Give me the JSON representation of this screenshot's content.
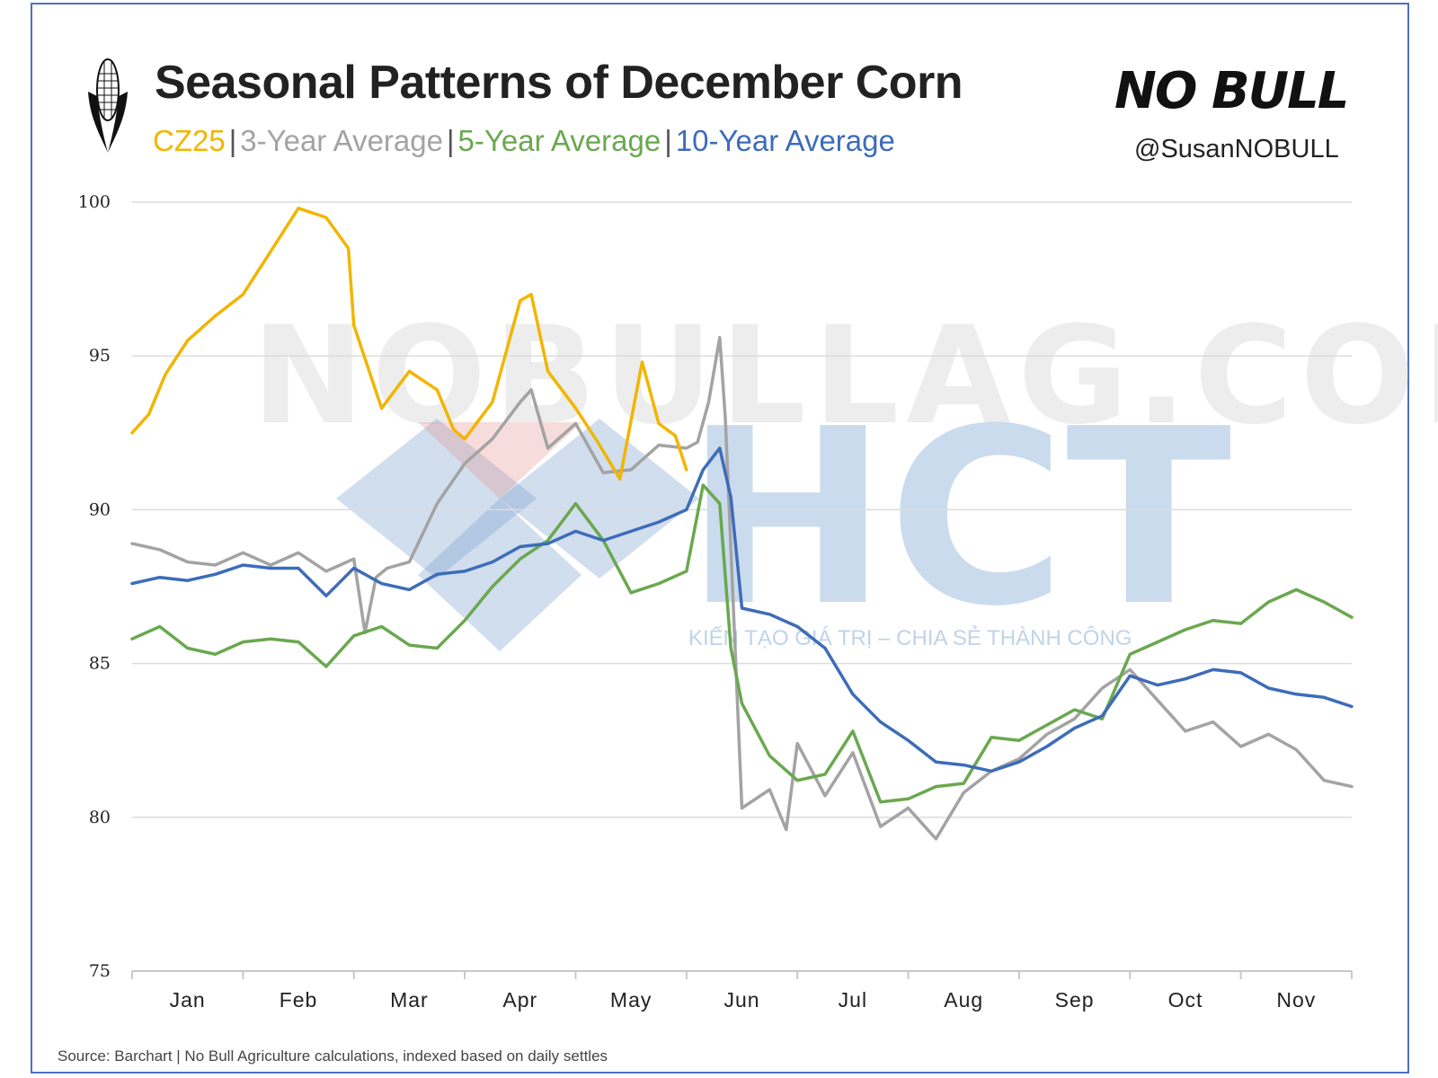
{
  "header": {
    "title": "Seasonal Patterns of December Corn",
    "subtitle_items": [
      {
        "label": "CZ25",
        "color": "#f2b500"
      },
      {
        "label": "3-Year Average",
        "color": "#a3a3a3"
      },
      {
        "label": "5-Year Average",
        "color": "#6aa84f"
      },
      {
        "label": "10-Year Average",
        "color": "#3d6cb9"
      }
    ],
    "separator": "|",
    "logo_text": "NO BULL",
    "handle": "@SusanNOBULL"
  },
  "watermark": {
    "text": "NOBULLAG.COM",
    "brand": "HCT",
    "tagline": "KIẾN TẠO GIÁ TRỊ – CHIA SẺ THÀNH CÔNG"
  },
  "footer": {
    "source": "Source: Barchart | No Bull Agriculture calculations, indexed based on daily settles"
  },
  "chart_data": {
    "type": "line",
    "title": "Seasonal Patterns of December Corn",
    "xlabel": "",
    "ylabel": "",
    "ylim": [
      75,
      100
    ],
    "yticks": [
      100,
      95,
      90,
      85,
      80,
      75
    ],
    "x_tick_labels": [
      "Jan",
      "Feb",
      "Mar",
      "Apr",
      "May",
      "Jun",
      "Jul",
      "Aug",
      "Sep",
      "Oct",
      "Nov"
    ],
    "x_domain_months": [
      0,
      11
    ],
    "grid": true,
    "series": [
      {
        "name": "3-Year Average",
        "color": "#a3a3a3",
        "x": [
          0,
          0.25,
          0.5,
          0.75,
          1,
          1.25,
          1.5,
          1.75,
          2,
          2.1,
          2.2,
          2.3,
          2.5,
          2.75,
          3,
          3.25,
          3.5,
          3.6,
          3.75,
          4,
          4.25,
          4.5,
          4.75,
          5,
          5.1,
          5.2,
          5.3,
          5.35,
          5.5,
          5.75,
          5.9,
          6,
          6.25,
          6.5,
          6.75,
          7,
          7.25,
          7.5,
          7.75,
          8,
          8.25,
          8.5,
          8.75,
          9,
          9.25,
          9.5,
          9.75,
          10,
          10.25,
          10.5,
          10.75,
          11
        ],
        "values": [
          88.9,
          88.7,
          88.3,
          88.2,
          88.6,
          88.2,
          88.6,
          88.0,
          88.4,
          86.0,
          87.8,
          88.1,
          88.3,
          90.2,
          91.5,
          92.3,
          93.5,
          93.9,
          92.0,
          92.8,
          91.2,
          91.3,
          92.1,
          92.0,
          92.2,
          93.5,
          95.6,
          93.0,
          80.3,
          80.9,
          79.6,
          82.4,
          80.7,
          82.1,
          79.7,
          80.3,
          79.3,
          80.8,
          81.5,
          81.9,
          82.7,
          83.2,
          84.2,
          84.8,
          83.8,
          82.8,
          83.1,
          82.3,
          82.7,
          82.2,
          81.2,
          81.0
        ]
      },
      {
        "name": "5-Year Average",
        "color": "#6aa84f",
        "x": [
          0,
          0.25,
          0.5,
          0.75,
          1,
          1.25,
          1.5,
          1.75,
          2,
          2.25,
          2.5,
          2.75,
          3,
          3.25,
          3.5,
          3.75,
          4,
          4.25,
          4.5,
          4.75,
          5,
          5.15,
          5.3,
          5.4,
          5.5,
          5.75,
          6,
          6.25,
          6.5,
          6.75,
          7,
          7.25,
          7.5,
          7.75,
          8,
          8.25,
          8.5,
          8.75,
          9,
          9.25,
          9.5,
          9.75,
          10,
          10.25,
          10.5,
          10.75,
          11
        ],
        "values": [
          85.8,
          86.2,
          85.5,
          85.3,
          85.7,
          85.8,
          85.7,
          84.9,
          85.9,
          86.2,
          85.6,
          85.5,
          86.4,
          87.5,
          88.4,
          89.0,
          90.2,
          89.0,
          87.3,
          87.6,
          88.0,
          90.8,
          90.2,
          85.5,
          83.7,
          82.0,
          81.2,
          81.4,
          82.8,
          80.5,
          80.6,
          81.0,
          81.1,
          82.6,
          82.5,
          83.0,
          83.5,
          83.2,
          85.3,
          85.7,
          86.1,
          86.4,
          86.3,
          87.0,
          87.4,
          87.0,
          86.5
        ]
      },
      {
        "name": "10-Year Average",
        "color": "#3d6cb9",
        "x": [
          0,
          0.25,
          0.5,
          0.75,
          1,
          1.25,
          1.5,
          1.75,
          2,
          2.25,
          2.5,
          2.75,
          3,
          3.25,
          3.5,
          3.75,
          4,
          4.25,
          4.5,
          4.75,
          5,
          5.15,
          5.3,
          5.4,
          5.5,
          5.75,
          6,
          6.25,
          6.5,
          6.75,
          7,
          7.25,
          7.5,
          7.75,
          8,
          8.25,
          8.5,
          8.75,
          9,
          9.25,
          9.5,
          9.75,
          10,
          10.25,
          10.5,
          10.75,
          11
        ],
        "values": [
          87.6,
          87.8,
          87.7,
          87.9,
          88.2,
          88.1,
          88.1,
          87.2,
          88.1,
          87.6,
          87.4,
          87.9,
          88.0,
          88.3,
          88.8,
          88.9,
          89.3,
          89.0,
          89.3,
          89.6,
          90.0,
          91.3,
          92.0,
          90.4,
          86.8,
          86.6,
          86.2,
          85.5,
          84.0,
          83.1,
          82.5,
          81.8,
          81.7,
          81.5,
          81.8,
          82.3,
          82.9,
          83.3,
          84.6,
          84.3,
          84.5,
          84.8,
          84.7,
          84.2,
          84.0,
          83.9,
          83.6
        ]
      },
      {
        "name": "CZ25",
        "color": "#f2b500",
        "x": [
          0,
          0.15,
          0.3,
          0.5,
          0.75,
          1,
          1.25,
          1.5,
          1.75,
          1.95,
          2,
          2.25,
          2.5,
          2.75,
          2.9,
          3,
          3.25,
          3.5,
          3.6,
          3.75,
          4,
          4.2,
          4.4,
          4.6,
          4.75,
          4.9,
          5
        ],
        "values": [
          92.5,
          93.1,
          94.4,
          95.5,
          96.3,
          97.0,
          98.4,
          99.8,
          99.5,
          98.5,
          96.0,
          93.3,
          94.5,
          93.9,
          92.6,
          92.3,
          93.5,
          96.8,
          97.0,
          94.5,
          93.3,
          92.2,
          91.0,
          94.8,
          92.8,
          92.4,
          91.3
        ]
      }
    ]
  }
}
